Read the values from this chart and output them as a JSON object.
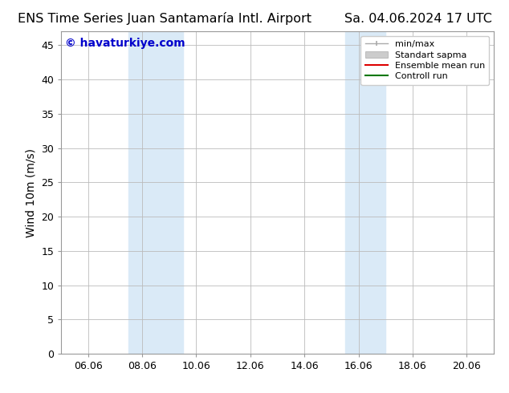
{
  "title_left": "ENS Time Series Juan Santamaría Intl. Airport",
  "title_right": "Sa. 04.06.2024 17 UTC",
  "ylabel": "Wind 10m (m/s)",
  "watermark": "© havaturkiye.com",
  "xtick_labels": [
    "06.06",
    "08.06",
    "10.06",
    "12.06",
    "14.06",
    "16.06",
    "18.06",
    "20.06"
  ],
  "xtick_positions": [
    1.0,
    3.0,
    5.0,
    7.0,
    9.0,
    11.0,
    13.0,
    15.0
  ],
  "xlim": [
    0,
    16
  ],
  "ylim": [
    0,
    47
  ],
  "yticks": [
    0,
    5,
    10,
    15,
    20,
    25,
    30,
    35,
    40,
    45
  ],
  "shaded_regions": [
    {
      "x_start": 2.5,
      "x_end": 4.5,
      "color": "#daeaf7"
    },
    {
      "x_start": 10.5,
      "x_end": 12.0,
      "color": "#daeaf7"
    }
  ],
  "background_color": "#ffffff",
  "plot_bg_color": "#ffffff",
  "grid_color": "#bbbbbb",
  "watermark_color": "#0000cc",
  "title_fontsize": 11.5,
  "axis_fontsize": 10,
  "tick_fontsize": 9,
  "watermark_fontsize": 10,
  "legend_fontsize": 8
}
